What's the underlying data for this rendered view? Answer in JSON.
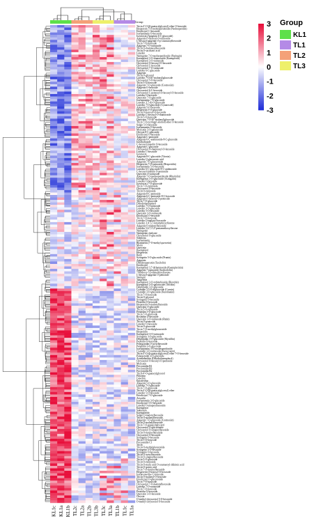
{
  "chart_data": {
    "type": "heatmap",
    "columns": [
      "KL1c",
      "KL1a",
      "KL1b",
      "TL2c",
      "TL2a",
      "TL2b",
      "TL3b",
      "TL3c",
      "TL3a",
      "TL1b",
      "TL1c",
      "TL1a"
    ],
    "top_annotation_label": "Group",
    "groups_per_column": [
      "KL1",
      "KL1",
      "KL1",
      "TL2",
      "TL2",
      "TL2",
      "TL3",
      "TL3",
      "TL3",
      "TL1",
      "TL1",
      "TL1"
    ],
    "legend": {
      "title": "Group",
      "items": [
        {
          "label": "KL1",
          "color": "#5ee04a"
        },
        {
          "label": "TL1",
          "color": "#b48ae6"
        },
        {
          "label": "TL2",
          "color": "#f4a178"
        },
        {
          "label": "TL3",
          "color": "#eef06a"
        }
      ]
    },
    "color_scale": {
      "ticks": [
        "3",
        "2",
        "1",
        "0",
        "-1",
        "-2",
        "-3"
      ],
      "min": -3,
      "max": 3,
      "low_color": "#2230d8",
      "mid_color": "#ffffff",
      "high_color": "#e8103c"
    },
    "row_labels": [
      "Tricin 4'-O-(β-guaiacylglyceryl) ether O-hexoside",
      "Hesperetin 7-O-neohesperidoside (Neohesperidin)",
      "Eriodictyol C-hexoside",
      "Isorhamnetin O-hexoside",
      "Isovitexin (Apigenin 6-C-glucoside)",
      "Apigenin O-hexosyl-O-rutinoside",
      "C-hexosyl-apigenin O-p-coumaroylhexoside",
      "Tricin 7-O-hexoside",
      "Apigenin 7-O-rutinoside",
      "Tricin O-rhamnosylhexoside",
      "Tricin O-saccharic acid",
      "Luteolin",
      "Naringenin 7-O-neohesperidoside (Naringin)",
      "Kaempferol 3-O-rhamnoside (Kaempferin)",
      "Kaempferol 3-O-rutinoside",
      "Chrysoeriol O-hexosyl-O-hexoside",
      "Chrysoeriol C-hexoside",
      "Chrysoeriol 7-O-rutinoside",
      "Luteolin 6-C-glucoside",
      "Apigenin",
      "Tricin O-glycerol",
      "Luteolin 7-O-(6''-malonyl)glucoside",
      "Chrysoeriol 5-O-hexoside",
      "Tricin 5-O-hexoside",
      "Apigenin 7-O-glucoside (Cosmosiin)",
      "Apigenin O-hexoside",
      "Chrysoeriol 6-C-hexoside",
      "Chrysoeriol C-pentosyl-O-hexosyl-O-hexoside",
      "Luteolin O-hexoside",
      "Quercetin 7-O-glucoside",
      "Isorhamnetin 7-O-glucoside",
      "Luteolin 3',7-di-O-glucoside",
      "Luteolin 7-O-glucoside (Cynaroside)",
      "Apigenin 5-O-hexoside",
      "Hesperetin 5-O-glucoside",
      "Tricin O-hexosyl-O-hexoside",
      "Luteolin C-hexosyl-O-rhamnoside",
      "Tricin 5-O-hexoside",
      "Quercetin 7-O-(6''-malonyl)glucoside",
      "Tricin 7-O-(syringyl alcohol) ether O-hexoside",
      "Selgin 5-O-hexoside",
      "Isorhamnetin O-hexoside",
      "Myricetin 3-O-galactoside",
      "Chrysin 8-C-glucoside",
      "Eriodictyol O-hexoside",
      "Apigenin C-pentoside",
      "Apigenin 6-C-arabinoside-8-C-glucoside",
      "Isoschaftoside",
      "C-hexosyl-luteolin O-hexoside",
      "Apigenin C-glucoside",
      "Chrysoeriol O-rhamnosyl-O-hexoside",
      "Luteolin C-hexoside",
      "Isovitexin",
      "Apigenin 8-C-glucoside (Vitexin)",
      "Luteolin O-glucuronic acid",
      "Apigenin 7-O-glucuronide",
      "Hesperetin 7-O-rutinoside (Hesperidin)",
      "Isorhamnetin 5-O-hexoside",
      "Luteolin 6-C-glucoside-8-C-arabinoside",
      "C-hexosyl-luteolin O-pentoside",
      "Quercetin O-rutinoside",
      "Apigenin 7-O-neohesperidoside (Rhoifolin)",
      "Kaempferol 3-O-glucoside (Astragalin)",
      "Luteolin O-hexoside",
      "Isovitexin 2''-O-glucoside",
      "Tricin 7-O-rutinoside",
      "Chrysoeriol O-hexoside",
      "Tricin O-rutinoside",
      "Apigenin 8-C-pentoside",
      "Apigenin 6-C-pentoside-8-C-hexoside",
      "Apigenin O-hexosyl-O-pentoside",
      "Tricin 7-O-glucoside",
      "Dihydrokaempferol",
      "Luteolin 7-O-rutinoside",
      "Luteolin 3-O-glucoside",
      "Luteolin 5-O-hexoside",
      "Quercetin 3-O-rutinoside",
      "Eriodictyol O-hexoside",
      "Tricin 7-O-hexoside",
      "Luteolin O-malonyl hexoside",
      "Luteolin 3',4',5,7-tetrahydroxyflavone",
      "Apigenin O-malonylhexoside",
      "Luteolin 5,6,7,3',4'-pentamethoxyflavone",
      "Naringenin",
      "Naringenin chalcone",
      "Chrysoeriol O-glucoside",
      "Nobiletin",
      "Isorhamnetin",
      "Rhamnetin (7-O-methyl quercetin)",
      "Morin",
      "Quercetin",
      "Kaempferol",
      "Hesperetin",
      "Butin",
      "Syringetin 5-O-glucoside (Prunin)",
      "Apigenin",
      "Dihydroquercetin (Taxifolin)",
      "Eriodictyol",
      "Kaempferol 3,7-dirhamnoside (Kaempferitrin)",
      "Apigenin 7-rutinoside (Isorhoifolin)",
      "7-Hydroxy-5,6-dimethoxyflavone",
      "C-hexosyl-apigenin O-pentoside",
      "Naringin",
      "Tangeretin",
      "Kaempferol 3-O-robinobioside (Biorobin)",
      "Kaempferol 3-O-galactoside (Trifolin)",
      "Delphinidin 3-O-glucoside",
      "Cyanidin 3,5-O-diglucoside (Cyanin)",
      "Cyanidin 3-O-glucoside (Kuromanin)",
      "Tricin 7-O-hexoside",
      "Tricin O-glycerol",
      "Syringetin O-hexoside",
      "Peonidin O-hexoside",
      "Hesperetin O-malonylhexoside",
      "Quercetin O-glucoside",
      "Tricin 5-O-rutinoside",
      "Petunidin 3-O-glucoside",
      "Tricin 7-O-glucoside",
      "Rosinidin O-hexoside",
      "Quercetin 3-O-rutinoside (Rutin)",
      "Tricin O-pentoside",
      "Luteolin O-hexoside",
      "Tricin O-glucoside",
      "Tricin 7-O-methylglucuronide",
      "Hesperidin",
      "Kaempferol-3-O-rutinoside",
      "Syringetin 3-O-glucoside",
      "Delphinidin 3-O-glucoside (Myrtillin)",
      "Peonidin O-hexoside",
      "Pelargonidin O-acetylhexoside",
      "Petunidin 3-O-glucoside",
      "Isorhamnetin 3-O-neohesperidoside",
      "Cyanidin 3-O-rutinoside (Keracyanin)",
      "Tricin 4'-O-(β-guaiacylglyceryl) ether 7-O-hexoside",
      "Pelargonidin 3-O-glucoside",
      "Aromadendrin (Dihydrokaempferol)",
      "Chrysoeriol O-hexosyl-O-pentoside",
      "Myricetin",
      "Procyanidin B1",
      "Procyanidin B3",
      "Procyanidin B2",
      "Tricin 4'-O-guaiacylglycerol",
      "Phloretin",
      "Catechin",
      "Epicatechin",
      "Apigenin 5-O-glucoside",
      "Luteolin 7-O-glucoside",
      "Tricin 7-O-glucoside",
      "Tricin 4'-O-(β-guaiacylglyceryl) ether",
      "Luteolin 5-O-hexoside",
      "Eriodictyol 7-O-glucoside",
      "Aesculin",
      "Isorhamnetin 3-O-glucoside",
      "Eriodictyol 5-O-hexoside",
      "Luteolin O-sinapoylhexoside",
      "Kaempferol",
      "Sakuranin",
      "Kaempferide",
      "Selgin O-malonylhexoside",
      "Tricin O-malonylhexoside",
      "Apigenin 7-O-glucoside (Cosmosiin)",
      "Tricin O-malonylhexoside",
      "Tricin 7-O-guaiacylglycerol",
      "Chrysoeriol O-glucuronide",
      "Chrysoeriol O-sinapoylhexoside",
      "Tricin O-feruloylhexoside",
      "Chrysoeriol O-hexoside",
      "Syringetin O-hexoside",
      "Tricin 5-O-hexoside",
      "Procyanidin C1",
      "Tricin",
      "Tricin O-methylglucuronide",
      "Syringetin 5-O-hexoside",
      "Syringetin O-hexoside",
      "Tricin O-acetylhexoside",
      "Tricin O-sinapoylhexoside",
      "Tricin 5-O-glucoside",
      "Tricin O-rutinoside",
      "Tricin O-malic acid O-coumaroyl shikimic acid",
      "Tricin O-quinic acid",
      "Tricin 7-O-feruloylhexoside",
      "Hesperetin O-hexosyl-O-hexoside",
      "Isoflavone-like C-hexoside",
      "Tricin O-malonyl-O-hexoside",
      "Eriodictyol O-glucuronide",
      "Tricin 7-O-hexoside",
      "Chrysoeriol 7-O-malonylhexoside",
      "Luteolin 7-O-rutinoside",
      "Tricin 7-O-hexoside",
      "Peonidin O-hexoside",
      "Quercetin 3-O-hexoside",
      "Chrysin",
      "O-methyl chrysoeriol 5-O-hexoside",
      "O-methyl chrysoeriol O-hexoside"
    ]
  }
}
